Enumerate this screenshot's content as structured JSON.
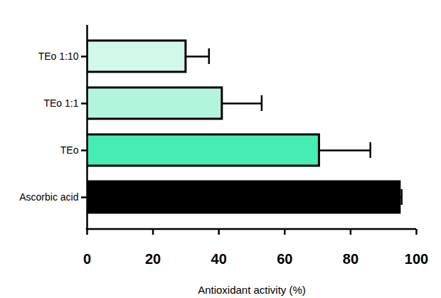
{
  "chart_data": {
    "type": "bar",
    "orientation": "horizontal",
    "x_label": "Antioxidant activity (%)",
    "categories": [
      "TEo 1:10",
      "TEo 1:1",
      "TEo",
      "Ascorbic acid"
    ],
    "values": [
      30,
      41,
      70.5,
      95
    ],
    "errors": [
      7,
      12,
      15.5,
      0.5
    ],
    "colors": [
      "#d1f8e8",
      "#b3f5dc",
      "#45ecb4",
      "#000000"
    ],
    "xlim": [
      0,
      100
    ],
    "xticks": [
      0,
      20,
      40,
      60,
      80,
      100
    ],
    "grid": false
  }
}
